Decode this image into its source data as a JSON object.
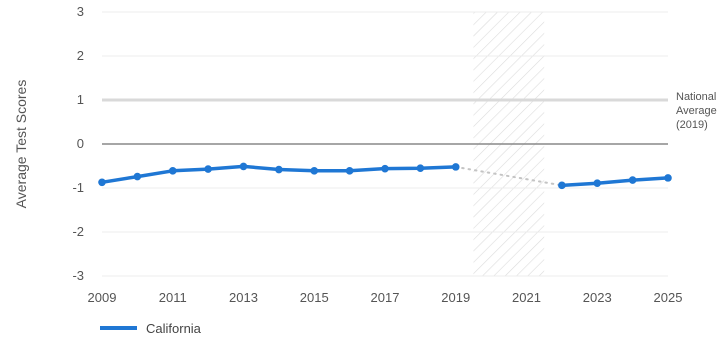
{
  "chart_data": {
    "type": "line",
    "title": "",
    "xlabel": "",
    "ylabel": "Average Test Scores",
    "xlim": [
      2009,
      2025
    ],
    "ylim": [
      -3,
      3
    ],
    "x_ticks": [
      "2009",
      "2011",
      "2013",
      "2015",
      "2017",
      "2019",
      "2021",
      "2023",
      "2025"
    ],
    "y_ticks": [
      "3",
      "2",
      "1",
      "0",
      "-1",
      "-2",
      "-3"
    ],
    "reference_lines": [
      {
        "label": "National Average (2019)",
        "y": 1,
        "color": "#d9d9d9"
      },
      {
        "label": "",
        "y": 0,
        "color": "#888888"
      }
    ],
    "annotation": {
      "lines": [
        "National",
        "Average",
        "(2019)"
      ]
    },
    "shaded_region": {
      "x_start": 2019.5,
      "x_end": 2021.5,
      "pattern": "hatched"
    },
    "series": [
      {
        "name": "California",
        "color": "#1f77d4",
        "x": [
          2009,
          2010,
          2011,
          2012,
          2013,
          2014,
          2015,
          2016,
          2017,
          2018,
          2019,
          2022,
          2023,
          2024,
          2025
        ],
        "values": [
          -0.87,
          -0.74,
          -0.61,
          -0.57,
          -0.51,
          -0.58,
          -0.61,
          -0.61,
          -0.56,
          -0.55,
          -0.52,
          -0.94,
          -0.89,
          -0.82,
          -0.77
        ],
        "gap_after_x": 2019,
        "gap_style": "dotted"
      }
    ],
    "legend": {
      "placement": "bottom-left",
      "entries": [
        {
          "label": "California",
          "color": "#1f77d4"
        }
      ]
    },
    "grid": true
  }
}
